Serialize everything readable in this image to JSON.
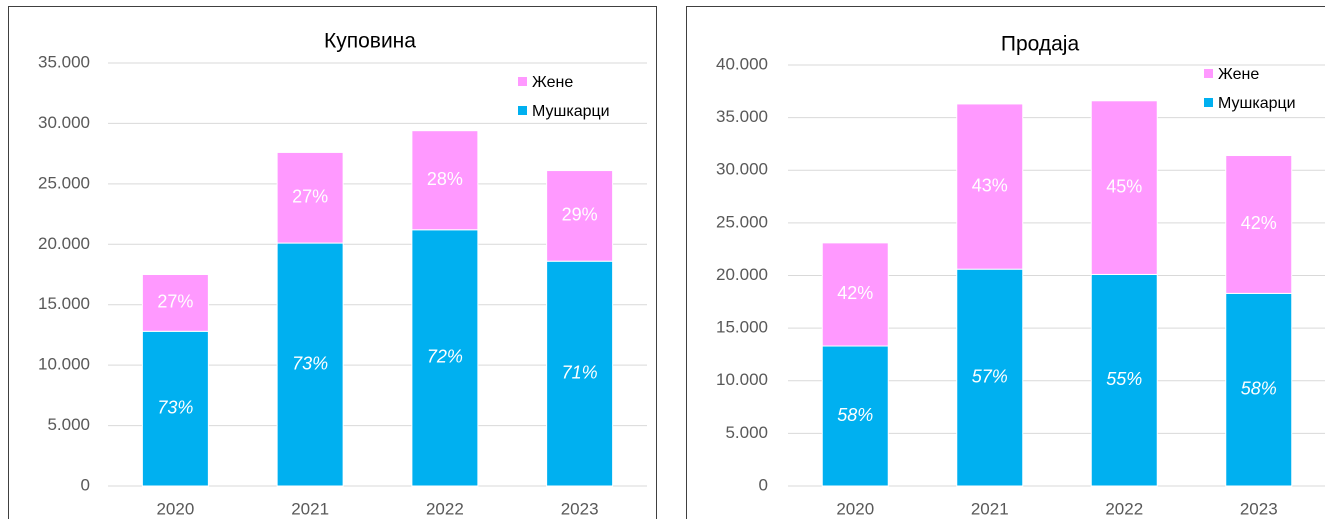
{
  "chart_data": [
    {
      "type": "bar",
      "stacked": true,
      "title": "Куповина",
      "categories": [
        "2020",
        "2021",
        "2022",
        "2023"
      ],
      "series": [
        {
          "name": "Мушкарци",
          "color": "#00b0f0",
          "values": [
            12800,
            20100,
            21200,
            18600
          ],
          "value_labels": [
            "73%",
            "73%",
            "72%",
            "71%"
          ]
        },
        {
          "name": "Жене",
          "color": "#ff99ff",
          "values": [
            4700,
            7500,
            8200,
            7500
          ],
          "value_labels": [
            "27%",
            "27%",
            "28%",
            "29%"
          ]
        }
      ],
      "ylim": [
        0,
        35000
      ],
      "yticks": [
        0,
        {
          "value": 5000,
          "label": "5.000"
        },
        {
          "value": 10000,
          "label": "10.000"
        },
        {
          "value": 15000,
          "label": "15.000"
        },
        {
          "value": 20000,
          "label": "20.000"
        },
        {
          "value": 25000,
          "label": "25.000"
        },
        {
          "value": 30000,
          "label": "30.000"
        },
        {
          "value": 35000,
          "label": "35.000"
        }
      ],
      "grid": true,
      "legend": "top-right"
    },
    {
      "type": "bar",
      "stacked": true,
      "title": "Продаја",
      "categories": [
        "2020",
        "2021",
        "2022",
        "2023"
      ],
      "series": [
        {
          "name": "Мушкарци",
          "color": "#00b0f0",
          "values": [
            13300,
            20600,
            20100,
            18300
          ],
          "value_labels": [
            "58%",
            "57%",
            "55%",
            "58%"
          ]
        },
        {
          "name": "Жене",
          "color": "#ff99ff",
          "values": [
            9800,
            15700,
            16500,
            13100
          ],
          "value_labels": [
            "42%",
            "43%",
            "45%",
            "42%"
          ]
        }
      ],
      "ylim": [
        0,
        40000
      ],
      "yticks": [
        0,
        {
          "value": 5000,
          "label": "5.000"
        },
        {
          "value": 10000,
          "label": "10.000"
        },
        {
          "value": 15000,
          "label": "15.000"
        },
        {
          "value": 20000,
          "label": "20.000"
        },
        {
          "value": 25000,
          "label": "25.000"
        },
        {
          "value": 30000,
          "label": "30.000"
        },
        {
          "value": 35000,
          "label": "35.000"
        },
        {
          "value": 40000,
          "label": "40.000"
        }
      ],
      "grid": true,
      "legend": "top-right"
    }
  ]
}
